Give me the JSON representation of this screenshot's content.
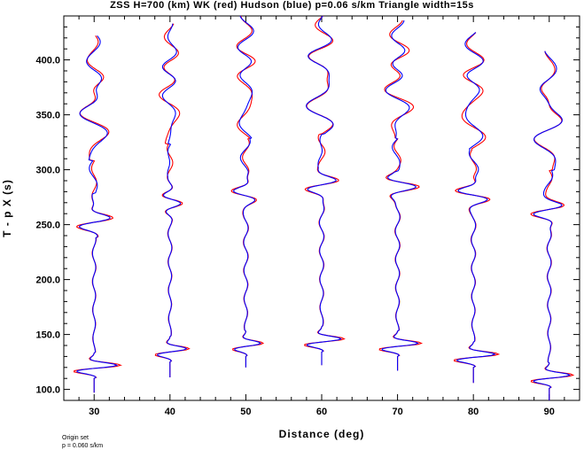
{
  "title": "ZSS H=700 (km) WK (red) Hudson (blue) p=0.06 s/km Triangle width=15s",
  "notes": [
    "Origin set",
    "p = 0.060 s/km"
  ],
  "chart_data": {
    "type": "line",
    "title": "ZSS H=700 (km) WK (red) Hudson (blue) p=0.06 s/km Triangle width=15s",
    "xlabel": "Distance (deg)",
    "ylabel": "T - p X (s)",
    "xlim": [
      26,
      94
    ],
    "ylim": [
      90,
      440
    ],
    "xticks": [
      30,
      40,
      50,
      60,
      70,
      80,
      90
    ],
    "xtick_labels": [
      "30",
      "40",
      "50",
      "60",
      "70",
      "80",
      "90"
    ],
    "yticks": [
      100,
      150,
      200,
      250,
      300,
      350,
      400
    ],
    "ytick_labels": [
      "100.0",
      "150.0",
      "200.0",
      "250.0",
      "300.0",
      "350.0",
      "400.0"
    ],
    "colors": {
      "WK": "#ff0000",
      "Hudson": "#0000ff",
      "axes": "#000000"
    },
    "series": [
      {
        "distance": 30,
        "onset": 128,
        "top": 422,
        "bottom": 97,
        "amp": 4.0,
        "tail": 0.9
      },
      {
        "distance": 40,
        "onset": 143,
        "top": 433,
        "bottom": 111,
        "amp": 2.9,
        "tail": 1.0
      },
      {
        "distance": 50,
        "onset": 148,
        "top": 440,
        "bottom": 120,
        "amp": 2.6,
        "tail": 1.2
      },
      {
        "distance": 60,
        "onset": 152,
        "top": 440,
        "bottom": 122,
        "amp": 3.4,
        "tail": 1.2
      },
      {
        "distance": 70,
        "onset": 148,
        "top": 436,
        "bottom": 117,
        "amp": 3.6,
        "tail": 1.2
      },
      {
        "distance": 80,
        "onset": 138,
        "top": 425,
        "bottom": 106,
        "amp": 3.8,
        "tail": 1.1
      },
      {
        "distance": 90,
        "onset": 119,
        "top": 408,
        "bottom": 90,
        "amp": 3.6,
        "tail": 1.0
      }
    ]
  }
}
